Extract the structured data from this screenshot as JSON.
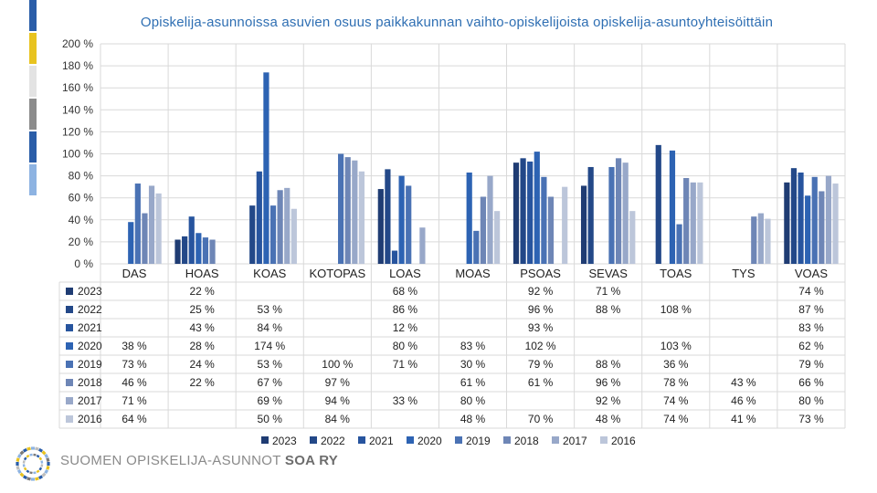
{
  "title": "Opiskelija-asunnoissa  asuvien osuus paikkakunnan vaihto-opiskelijoista opiskelija-asuntoyhteisöittäin",
  "brand": {
    "text": "SUOMEN OPISKELIJA-ASUNNOT",
    "bold": "SOA RY"
  },
  "stripe_colors": [
    "#2a5da8",
    "#e8c320",
    "#e3e3e3",
    "#8c8c8c",
    "#2a5da8",
    "#8db3e2"
  ],
  "chart_data": {
    "type": "bar",
    "categories": [
      "DAS",
      "HOAS",
      "KOAS",
      "KOTOPAS",
      "LOAS",
      "MOAS",
      "PSOAS",
      "SEVAS",
      "TOAS",
      "TYS",
      "VOAS"
    ],
    "ylim": [
      0,
      200
    ],
    "yticks": [
      "0 %",
      "20 %",
      "40 %",
      "60 %",
      "80 %",
      "100 %",
      "120 %",
      "140 %",
      "160 %",
      "180 %",
      "200 %"
    ],
    "grid": true,
    "legend": "bottom",
    "series": [
      {
        "name": "2023",
        "color": "#1f3c73",
        "values": [
          null,
          22,
          null,
          null,
          68,
          null,
          92,
          71,
          null,
          null,
          74
        ],
        "labels": [
          "",
          "22 %",
          "",
          "",
          "68 %",
          "",
          "92 %",
          "71 %",
          "",
          "",
          "74 %"
        ]
      },
      {
        "name": "2022",
        "color": "#234888",
        "values": [
          null,
          25,
          53,
          null,
          86,
          null,
          96,
          88,
          108,
          null,
          87
        ],
        "labels": [
          "",
          "25 %",
          "53 %",
          "",
          "86 %",
          "",
          "96 %",
          "88 %",
          "108 %",
          "",
          "87 %"
        ]
      },
      {
        "name": "2021",
        "color": "#27549e",
        "values": [
          null,
          43,
          84,
          null,
          12,
          null,
          93,
          null,
          null,
          null,
          83
        ],
        "labels": [
          "",
          "43 %",
          "84 %",
          "",
          "12 %",
          "",
          "93 %",
          "",
          "",
          "",
          "83 %"
        ]
      },
      {
        "name": "2020",
        "color": "#2d63b3",
        "values": [
          38,
          28,
          174,
          null,
          80,
          83,
          102,
          null,
          103,
          null,
          62
        ],
        "labels": [
          "38 %",
          "28 %",
          "174 %",
          "",
          "80 %",
          "83 %",
          "102 %",
          "",
          "103 %",
          "",
          "62 %"
        ]
      },
      {
        "name": "2019",
        "color": "#4a72b4",
        "values": [
          73,
          24,
          53,
          100,
          71,
          30,
          79,
          88,
          36,
          null,
          79
        ],
        "labels": [
          "73 %",
          "24 %",
          "53 %",
          "100 %",
          "71 %",
          "30 %",
          "79 %",
          "88 %",
          "36 %",
          "",
          "79 %"
        ]
      },
      {
        "name": "2018",
        "color": "#6e86b6",
        "values": [
          46,
          22,
          67,
          97,
          null,
          61,
          61,
          96,
          78,
          43,
          66
        ],
        "labels": [
          "46 %",
          "22 %",
          "67 %",
          "97 %",
          "",
          "61 %",
          "61 %",
          "96 %",
          "78 %",
          "43 %",
          "66 %"
        ]
      },
      {
        "name": "2017",
        "color": "#98a8c9",
        "values": [
          71,
          null,
          69,
          94,
          33,
          80,
          null,
          92,
          74,
          46,
          80
        ],
        "labels": [
          "71 %",
          "",
          "69 %",
          "94 %",
          "33 %",
          "80 %",
          "",
          "92 %",
          "74 %",
          "46 %",
          "80 %"
        ]
      },
      {
        "name": "2016",
        "color": "#bcc6da",
        "values": [
          64,
          null,
          50,
          84,
          null,
          48,
          70,
          48,
          74,
          41,
          73
        ],
        "labels": [
          "64 %",
          "",
          "50 %",
          "84 %",
          "",
          "48 %",
          "70 %",
          "48 %",
          "74 %",
          "41 %",
          "73 %"
        ]
      }
    ]
  }
}
